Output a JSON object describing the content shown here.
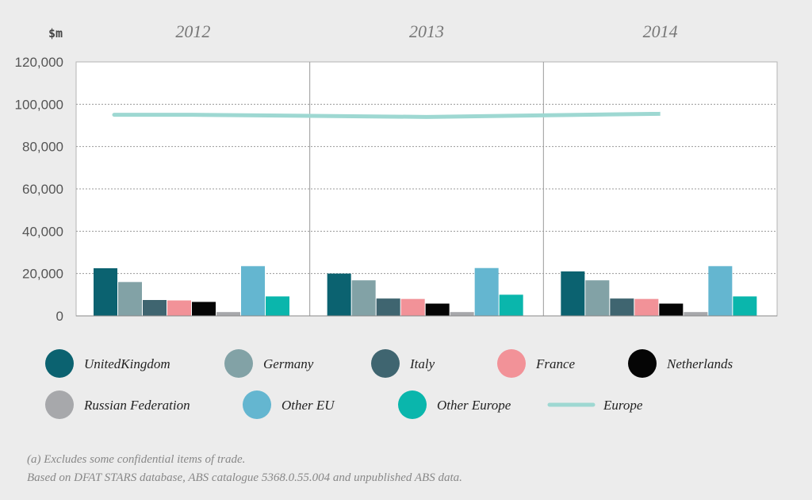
{
  "chart_data": {
    "type": "bar",
    "unit_label": "$m",
    "categories": [
      "2012",
      "2013",
      "2014"
    ],
    "ylim": [
      0,
      120000
    ],
    "yticks": [
      0,
      20000,
      40000,
      60000,
      80000,
      100000,
      120000
    ],
    "ytick_labels": [
      "0",
      "20,000",
      "40,000",
      "60,000",
      "80,000",
      "100,000",
      "120,000"
    ],
    "series": [
      {
        "name": "UnitedKingdom",
        "color": "#0b6270",
        "values": [
          22500,
          20000,
          21000
        ]
      },
      {
        "name": "Germany",
        "color": "#82a2a6",
        "values": [
          16000,
          16800,
          16800
        ]
      },
      {
        "name": "Italy",
        "color": "#3f6570",
        "values": [
          7500,
          8200,
          8200
        ]
      },
      {
        "name": "France",
        "color": "#f29298",
        "values": [
          7300,
          8000,
          8000
        ]
      },
      {
        "name": "Netherlands",
        "color": "#050505",
        "values": [
          6600,
          5800,
          5800
        ]
      },
      {
        "name": "Russian Federation",
        "color": "#a7a8ab",
        "values": [
          1800,
          1800,
          1800
        ]
      },
      {
        "name": "Other EU",
        "color": "#64b6d0",
        "values": [
          23500,
          22600,
          23500
        ]
      },
      {
        "name": "Other Europe",
        "color": "#0ab6ac",
        "values": [
          9200,
          10000,
          9200
        ]
      }
    ],
    "line_series": {
      "name": "Europe",
      "color": "#9ed8d2",
      "values": [
        95000,
        94000,
        95500
      ]
    }
  },
  "footnotes": [
    "(a) Excludes some confidential items of trade.",
    "Based on DFAT STARS database, ABS catalogue 5368.0.55.004 and unpublished ABS data."
  ]
}
